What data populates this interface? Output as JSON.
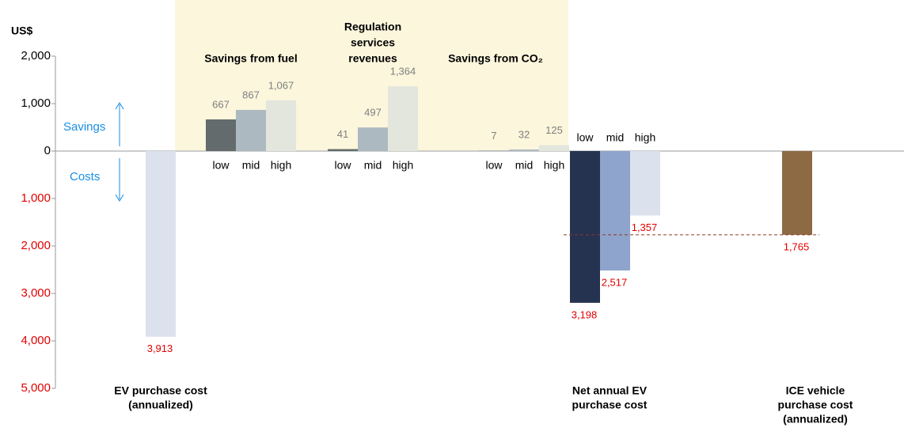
{
  "chart_data": {
    "type": "bar",
    "y_label": "US$",
    "ylim": [
      -5000,
      2000
    ],
    "yticks": [
      {
        "value": 2000,
        "label": "2,000"
      },
      {
        "value": 1000,
        "label": "1,000"
      },
      0,
      {
        "value": -1000,
        "label": "1,000"
      },
      {
        "value": -2000,
        "label": "2,000"
      },
      {
        "value": -3000,
        "label": "3,000"
      },
      {
        "value": -4000,
        "label": "4,000"
      },
      {
        "value": -5000,
        "label": "5,000"
      }
    ],
    "annotations": [
      "Savings",
      "Costs"
    ],
    "groups": [
      {
        "label": [
          "EV purchase cost",
          "(annualized)"
        ],
        "categories": [
          null
        ],
        "values": [
          -3913
        ],
        "value_labels": [
          "3,913"
        ],
        "colors": [
          "#dbe2ee"
        ]
      },
      {
        "label": [
          "Savings from fuel"
        ],
        "categories": [
          "low",
          "mid",
          "high"
        ],
        "values": [
          667,
          867,
          1067
        ],
        "value_labels": [
          "667",
          "867",
          "1,067"
        ],
        "colors": [
          "#636b6d",
          "#adb9c1",
          "#e3e6dd"
        ]
      },
      {
        "label": [
          "Regulation",
          "services",
          "revenues"
        ],
        "categories": [
          "low",
          "mid",
          "high"
        ],
        "values": [
          41,
          497,
          1364
        ],
        "value_labels": [
          "41",
          "497",
          "1,364"
        ],
        "colors": [
          "#636b6d",
          "#adb9c1",
          "#e3e6dd"
        ]
      },
      {
        "label": [
          "Savings from CO₂"
        ],
        "categories": [
          "low",
          "mid",
          "high"
        ],
        "values": [
          7,
          32,
          125
        ],
        "value_labels": [
          "7",
          "32",
          "125"
        ],
        "colors": [
          "#636b6d",
          "#adb9c1",
          "#e3e6dd"
        ]
      },
      {
        "label": [
          "Net annual EV",
          "purchase cost"
        ],
        "categories": [
          "low",
          "mid",
          "high"
        ],
        "values": [
          -3198,
          -2517,
          -1357
        ],
        "value_labels": [
          "3,198",
          "2,517",
          "1,357"
        ],
        "colors": [
          "#253350",
          "#8fa4cc",
          "#dbe2ee"
        ]
      },
      {
        "label": [
          "ICE vehicle",
          "purchase cost",
          "(annualized)"
        ],
        "categories": [
          null
        ],
        "values": [
          -1765
        ],
        "value_labels": [
          "1,765"
        ],
        "colors": [
          "#8d6a43"
        ]
      }
    ]
  }
}
